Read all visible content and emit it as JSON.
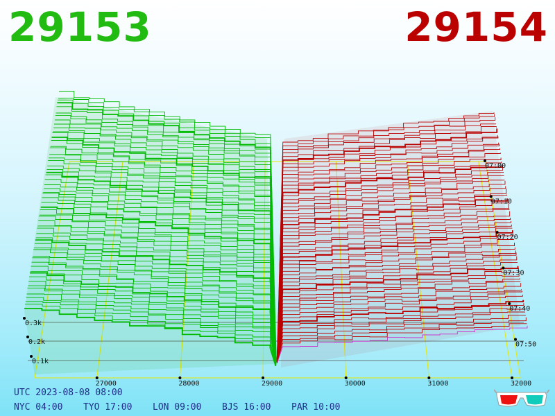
{
  "header": {
    "bid_price": "29153",
    "ask_price": "29154",
    "bid_color": "#22bb11",
    "ask_color": "#bb0000"
  },
  "footer": {
    "utc": "UTC 2023-08-08 08:00",
    "clocks": [
      {
        "label": "NYC 04:00"
      },
      {
        "label": "TYO 17:00"
      },
      {
        "label": "LON 09:00"
      },
      {
        "label": "BJS 16:00"
      },
      {
        "label": "PAR 10:00"
      }
    ]
  },
  "icons": {
    "glasses": "3d-glasses-icon"
  },
  "chart_data": {
    "type": "area",
    "style": "3D cumulative order-book depth over time",
    "x_ticks": [
      "27000",
      "28000",
      "29000",
      "30000",
      "31000",
      "32000"
    ],
    "x_range": [
      26250,
      32100
    ],
    "time_ticks": [
      "07:00",
      "07:10",
      "07:20",
      "07:30",
      "07:40",
      "07:50"
    ],
    "depth_ticks": [
      "0.3k",
      "0.2k",
      "0.1k"
    ],
    "bid": {
      "color": "#00bb00",
      "price": 29153
    },
    "ask": {
      "color": "#bb0000",
      "price": 29154
    },
    "grid": true
  }
}
